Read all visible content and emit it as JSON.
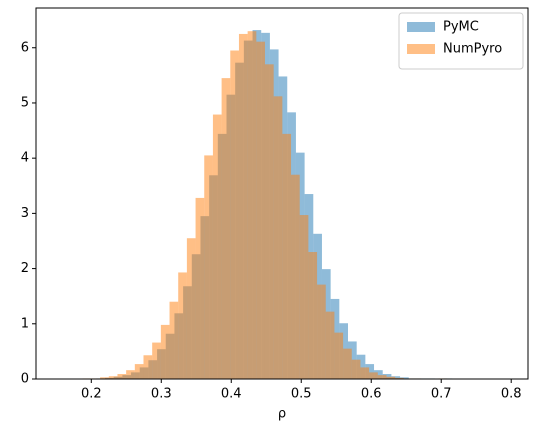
{
  "chart_data": {
    "type": "histogram",
    "x_label": "ρ",
    "xlim": [
      0.121,
      0.824
    ],
    "ylim": [
      0,
      6.72
    ],
    "xticks": [
      0.2,
      0.3,
      0.4,
      0.5,
      0.6,
      0.7,
      0.8
    ],
    "yticks": [
      0,
      1,
      2,
      3,
      4,
      5,
      6
    ],
    "legend": "upper right",
    "series": [
      {
        "name": "PyMC",
        "color": "#1f77b4",
        "bins": [
          0.17,
          0.1824,
          0.1948,
          0.2072,
          0.2196,
          0.232,
          0.2444,
          0.2568,
          0.2692,
          0.2816,
          0.294,
          0.3064,
          0.3188,
          0.3312,
          0.3436,
          0.356,
          0.3684,
          0.3808,
          0.3932,
          0.4056,
          0.418,
          0.4304,
          0.4428,
          0.4552,
          0.4676,
          0.48,
          0.4924,
          0.5048,
          0.5172,
          0.5296,
          0.542,
          0.5544,
          0.5668,
          0.5792,
          0.5916,
          0.604,
          0.6164,
          0.6288,
          0.6412,
          0.6536,
          0.666,
          0.6784,
          0.6908,
          0.7032,
          0.7156
        ],
        "values": [
          0,
          0,
          0,
          0.01,
          0.02,
          0.04,
          0.07,
          0.12,
          0.21,
          0.34,
          0.54,
          0.82,
          1.19,
          1.68,
          2.26,
          2.95,
          3.69,
          4.44,
          5.15,
          5.73,
          6.13,
          6.32,
          6.27,
          5.97,
          5.48,
          4.83,
          4.1,
          3.35,
          2.63,
          1.99,
          1.45,
          1.01,
          0.68,
          0.44,
          0.27,
          0.16,
          0.09,
          0.05,
          0.03,
          0.01,
          0.01,
          0.01,
          0,
          0.01
        ]
      },
      {
        "name": "NumPyro",
        "color": "#ff7f0e",
        "bins": [
          0.163,
          0.1754,
          0.1878,
          0.2002,
          0.2126,
          0.225,
          0.2374,
          0.2498,
          0.2622,
          0.2746,
          0.287,
          0.2994,
          0.3118,
          0.3242,
          0.3366,
          0.349,
          0.3614,
          0.3738,
          0.3862,
          0.3986,
          0.411,
          0.4234,
          0.4358,
          0.4482,
          0.4606,
          0.473,
          0.4854,
          0.4978,
          0.5102,
          0.5226,
          0.535,
          0.5474,
          0.5598,
          0.5722,
          0.5846,
          0.597,
          0.6094,
          0.6218,
          0.6342,
          0.6466,
          0.659,
          0.6714,
          0.6838,
          0.6962,
          0.7086
        ],
        "values": [
          0,
          0,
          0.01,
          0.01,
          0.03,
          0.05,
          0.09,
          0.16,
          0.27,
          0.43,
          0.66,
          0.98,
          1.4,
          1.93,
          2.55,
          3.28,
          4.05,
          4.79,
          5.45,
          5.95,
          6.25,
          6.3,
          6.11,
          5.7,
          5.12,
          4.44,
          3.7,
          2.97,
          2.3,
          1.71,
          1.22,
          0.84,
          0.55,
          0.35,
          0.21,
          0.12,
          0.07,
          0.04,
          0.02,
          0.01,
          0.01,
          0,
          0,
          0.01
        ]
      }
    ]
  }
}
